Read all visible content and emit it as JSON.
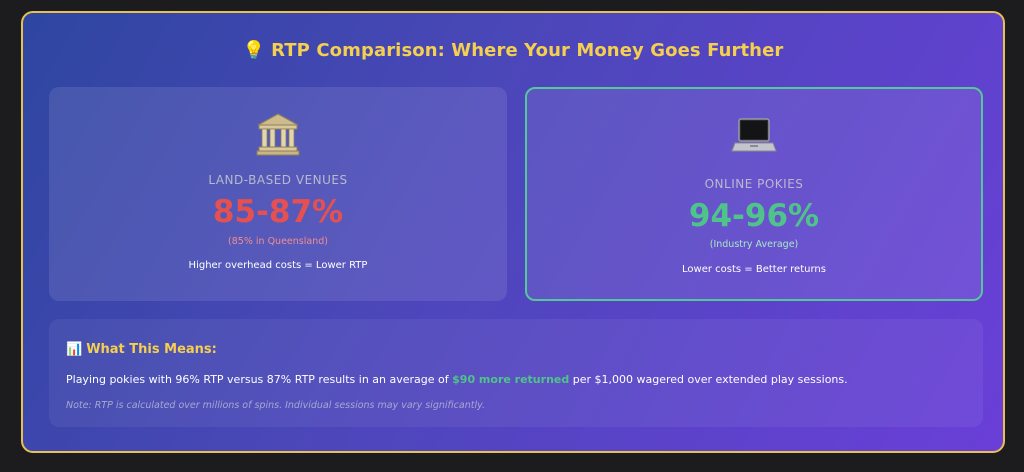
{
  "title": {
    "icon": "lightbulb-icon",
    "icon_glyph": "💡",
    "text": "RTP Comparison: Where Your Money Goes Further"
  },
  "cards": {
    "land": {
      "icon": "bank-building-icon",
      "label": "LAND-BASED VENUES",
      "value": "85-87%",
      "sub": "(85% in Queensland)",
      "note": "Higher overhead costs = Lower RTP",
      "value_color": "#e55050"
    },
    "online": {
      "icon": "laptop-icon",
      "label": "ONLINE POKIES",
      "value": "94-96%",
      "sub": "(Industry Average)",
      "note": "Lower costs = Better returns",
      "value_color": "#4fc48a"
    }
  },
  "means": {
    "icon": "bar-chart-icon",
    "icon_glyph": "📊",
    "title": "What This Means:",
    "body_pre": "Playing pokies with 96% RTP versus 87% RTP results in an average of ",
    "body_highlight": "$90 more returned",
    "body_post": " per $1,000 wagered over extended play sessions.",
    "note": "Note: RTP is calculated over millions of spins. Individual sessions may vary significantly."
  },
  "colors": {
    "accent": "#f5cf4e",
    "border": "#e6c14f",
    "positive": "#4fc48a",
    "negative": "#e55050"
  }
}
